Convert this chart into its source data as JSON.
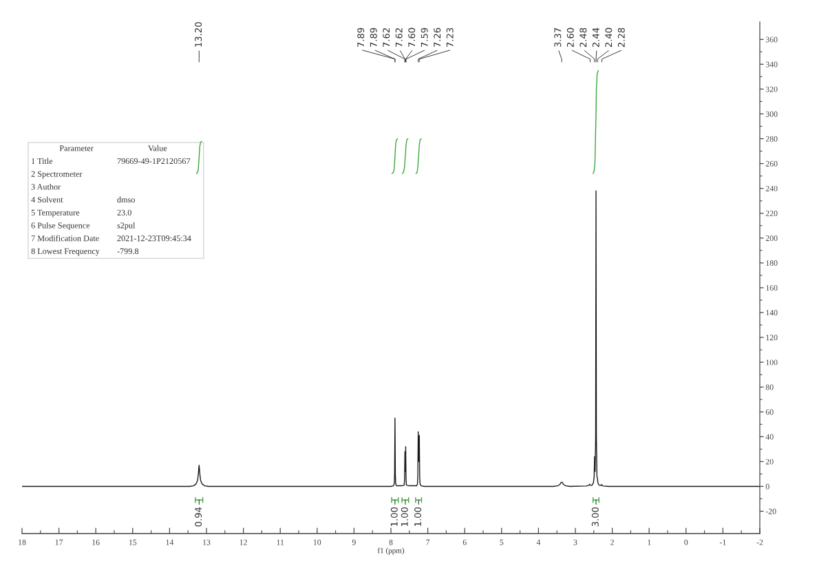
{
  "chart_data": {
    "type": "line",
    "xlabel": "f1 (ppm)",
    "xlim": [
      18,
      -2
    ],
    "xticks": [
      18,
      17,
      16,
      15,
      14,
      13,
      12,
      11,
      10,
      9,
      8,
      7,
      6,
      5,
      4,
      3,
      2,
      1,
      0,
      -1,
      -2
    ],
    "ylim": [
      -38,
      374
    ],
    "yticks": [
      -20,
      0,
      20,
      40,
      60,
      80,
      100,
      120,
      140,
      160,
      180,
      200,
      220,
      240,
      260,
      280,
      300,
      320,
      340,
      360
    ],
    "series": [
      {
        "color": "#1a1a1a",
        "x": [
          18.0,
          13.45,
          13.35,
          13.28,
          13.24,
          13.22,
          13.21,
          13.2,
          13.19,
          13.18,
          13.16,
          13.12,
          13.05,
          12.95,
          8.0,
          7.93,
          7.91,
          7.9,
          7.89,
          7.88,
          7.87,
          7.85,
          7.7,
          7.64,
          7.63,
          7.62,
          7.615,
          7.605,
          7.6,
          7.59,
          7.58,
          7.5,
          7.3,
          7.28,
          7.27,
          7.26,
          7.245,
          7.23,
          7.22,
          7.21,
          7.18,
          7.1,
          3.6,
          3.48,
          3.42,
          3.39,
          3.37,
          3.35,
          3.32,
          3.26,
          3.15,
          2.7,
          2.62,
          2.61,
          2.6,
          2.55,
          2.51,
          2.49,
          2.48,
          2.465,
          2.45,
          2.44,
          2.43,
          2.415,
          2.4,
          2.39,
          2.36,
          2.31,
          2.29,
          2.28,
          2.25,
          2.1,
          -2.0
        ],
        "values": [
          0,
          0,
          0.5,
          2,
          5,
          10,
          14,
          17,
          14,
          10,
          5,
          2,
          0.5,
          0,
          0,
          0.5,
          2,
          10,
          55,
          10,
          2,
          0.5,
          0.5,
          1,
          6,
          28,
          12,
          12,
          32,
          6,
          1,
          0.5,
          0.5,
          2,
          8,
          44,
          20,
          41,
          8,
          2,
          0.5,
          0,
          0,
          0.5,
          1.5,
          3,
          3.5,
          3,
          1.5,
          0.5,
          0,
          0.3,
          1,
          1.8,
          1,
          0.8,
          3,
          8,
          24,
          12,
          40,
          238,
          40,
          8,
          6,
          3,
          1,
          0.8,
          1.5,
          1,
          0.3,
          0,
          0
        ]
      },
      {
        "color": "#3aa83a",
        "x": [
          13.27,
          13.24,
          13.22,
          13.2,
          13.18,
          13.16,
          13.13
        ],
        "values": [
          252,
          253,
          256,
          265,
          274,
          277,
          278
        ]
      },
      {
        "color": "#3aa83a",
        "x": [
          7.97,
          7.93,
          7.91,
          7.89,
          7.87,
          7.85,
          7.82
        ],
        "values": [
          252,
          253,
          256,
          266,
          276,
          279,
          280
        ]
      },
      {
        "color": "#3aa83a",
        "x": [
          7.69,
          7.66,
          7.63,
          7.61,
          7.59,
          7.57,
          7.54
        ],
        "values": [
          252,
          253,
          257,
          266,
          275,
          279,
          280
        ]
      },
      {
        "color": "#3aa83a",
        "x": [
          7.32,
          7.29,
          7.27,
          7.25,
          7.23,
          7.21,
          7.18
        ],
        "values": [
          252,
          253,
          257,
          266,
          275,
          279,
          280
        ]
      },
      {
        "color": "#3aa83a",
        "x": [
          2.52,
          2.49,
          2.47,
          2.455,
          2.44,
          2.43,
          2.41,
          2.38
        ],
        "values": [
          252,
          254,
          260,
          280,
          300,
          320,
          332,
          335
        ]
      },
      {
        "color": "#3aa83a",
        "x": [
          13.3,
          13.3,
          13.3,
          13.1,
          13.1,
          13.1
        ],
        "values": [
          -9,
          -13,
          -11,
          -11,
          -9,
          -13
        ]
      },
      {
        "color": "#3aa83a",
        "x": [
          7.98,
          7.98,
          7.98,
          7.8,
          7.8,
          7.8
        ],
        "values": [
          -9,
          -13,
          -11,
          -11,
          -9,
          -13
        ]
      },
      {
        "color": "#3aa83a",
        "x": [
          7.7,
          7.7,
          7.7,
          7.52,
          7.52,
          7.52
        ],
        "values": [
          -9,
          -13,
          -11,
          -11,
          -9,
          -13
        ]
      },
      {
        "color": "#3aa83a",
        "x": [
          7.33,
          7.33,
          7.33,
          7.17,
          7.17,
          7.17
        ],
        "values": [
          -9,
          -13,
          -11,
          -11,
          -9,
          -13
        ]
      },
      {
        "color": "#3aa83a",
        "x": [
          2.52,
          2.52,
          2.52,
          2.36,
          2.36,
          2.36
        ],
        "values": [
          -9,
          -13,
          -11,
          -11,
          -9,
          -13
        ]
      }
    ],
    "annotations": [
      {
        "text": "13.20",
        "x": 13.2
      },
      {
        "text": "7.89",
        "x": 7.89
      },
      {
        "text": "7.89",
        "x": 7.89
      },
      {
        "text": "7.62",
        "x": 7.62
      },
      {
        "text": "7.62",
        "x": 7.62
      },
      {
        "text": "7.60",
        "x": 7.6
      },
      {
        "text": "7.59",
        "x": 7.59
      },
      {
        "text": "7.26",
        "x": 7.26
      },
      {
        "text": "7.23",
        "x": 7.23
      },
      {
        "text": "3.37",
        "x": 3.37
      },
      {
        "text": "2.60",
        "x": 2.6
      },
      {
        "text": "2.48",
        "x": 2.48
      },
      {
        "text": "2.44",
        "x": 2.44
      },
      {
        "text": "2.40",
        "x": 2.4
      },
      {
        "text": "2.28",
        "x": 2.28
      },
      {
        "text": "0.94",
        "x": 13.2,
        "y": -11
      },
      {
        "text": "1.00",
        "x": 7.89,
        "y": -11
      },
      {
        "text": "1.00",
        "x": 7.61,
        "y": -11
      },
      {
        "text": "1.00",
        "x": 7.25,
        "y": -11
      },
      {
        "text": "3.00",
        "x": 2.44,
        "y": -11
      },
      "Parameter\tValue",
      "1 Title\t79669-49-1P2120567",
      "2 Spectrometer",
      "3 Author",
      "4 Solvent\tdmso",
      "5 Temperature\t23.0",
      "6 Pulse Sequence\ts2pul",
      "7 Modification Date\t2021-12-23T09:45:34",
      "8 Lowest Frequency\t-799.8"
    ]
  }
}
